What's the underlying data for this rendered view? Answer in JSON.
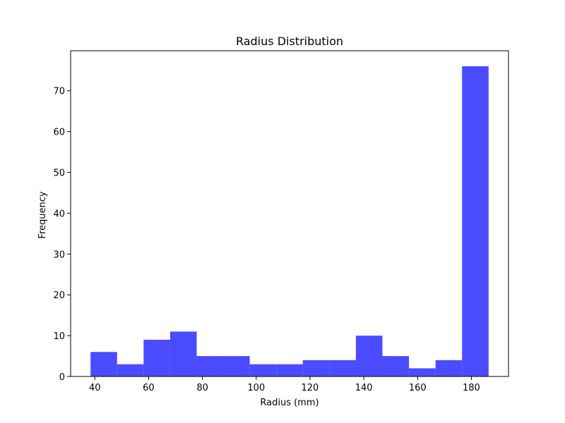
{
  "chart_data": {
    "type": "bar",
    "title": "Radius Distribution",
    "xlabel": "Radius (mm)",
    "ylabel": "Frequency",
    "bin_edges": [
      38.4,
      48.27,
      58.13,
      68.0,
      77.87,
      87.73,
      97.6,
      107.47,
      117.33,
      127.2,
      137.07,
      146.93,
      156.8,
      166.67,
      176.53,
      186.4
    ],
    "values": [
      6,
      3,
      9,
      11,
      5,
      5,
      3,
      3,
      4,
      4,
      10,
      5,
      2,
      4,
      76
    ],
    "xlim": [
      31.0,
      193.8
    ],
    "ylim": [
      0,
      79.8
    ],
    "xticks": [
      40,
      60,
      80,
      100,
      120,
      140,
      160,
      180
    ],
    "yticks": [
      0,
      10,
      20,
      30,
      40,
      50,
      60,
      70
    ],
    "bar_color": "#4b4bff",
    "grid": false
  }
}
